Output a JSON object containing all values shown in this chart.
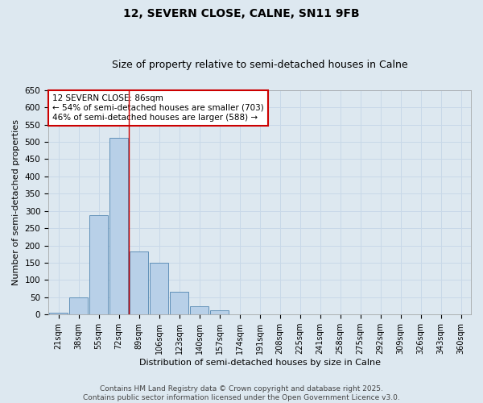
{
  "title": "12, SEVERN CLOSE, CALNE, SN11 9FB",
  "subtitle": "Size of property relative to semi-detached houses in Calne",
  "xlabel": "Distribution of semi-detached houses by size in Calne",
  "ylabel": "Number of semi-detached properties",
  "bin_labels": [
    "21sqm",
    "38sqm",
    "55sqm",
    "72sqm",
    "89sqm",
    "106sqm",
    "123sqm",
    "140sqm",
    "157sqm",
    "174sqm",
    "191sqm",
    "208sqm",
    "225sqm",
    "241sqm",
    "258sqm",
    "275sqm",
    "292sqm",
    "309sqm",
    "326sqm",
    "343sqm",
    "360sqm"
  ],
  "bar_values": [
    5,
    50,
    287,
    511,
    183,
    150,
    67,
    25,
    12,
    0,
    0,
    0,
    0,
    0,
    0,
    0,
    0,
    0,
    0,
    0,
    0
  ],
  "bar_color": "#b8d0e8",
  "bar_edge_color": "#6090b8",
  "property_size_idx": 4,
  "vline_color": "#cc0000",
  "annotation_title": "12 SEVERN CLOSE: 86sqm",
  "annotation_line1": "← 54% of semi-detached houses are smaller (703)",
  "annotation_line2": "46% of semi-detached houses are larger (588) →",
  "annotation_box_facecolor": "#ffffff",
  "annotation_box_edgecolor": "#cc0000",
  "ylim_max": 650,
  "yticks": [
    0,
    50,
    100,
    150,
    200,
    250,
    300,
    350,
    400,
    450,
    500,
    550,
    600,
    650
  ],
  "grid_color": "#c8d8e8",
  "background_color": "#dde8f0",
  "footer1": "Contains HM Land Registry data © Crown copyright and database right 2025.",
  "footer2": "Contains public sector information licensed under the Open Government Licence v3.0.",
  "title_fontsize": 10,
  "subtitle_fontsize": 9,
  "axis_label_fontsize": 8,
  "tick_fontsize": 7.5,
  "annotation_fontsize": 7.5,
  "footer_fontsize": 6.5
}
